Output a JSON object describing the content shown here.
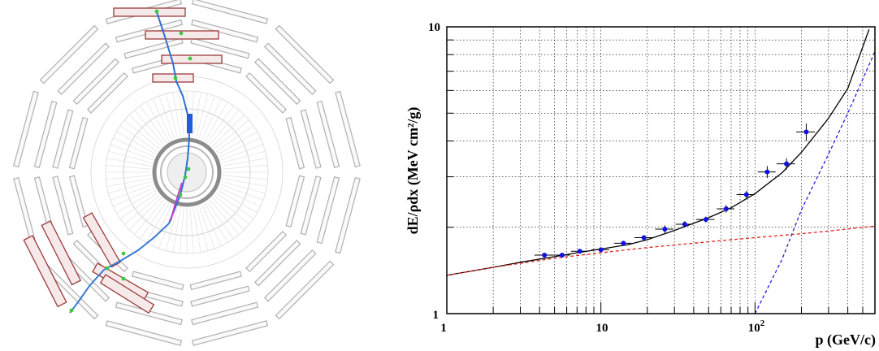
{
  "event_display": {
    "chamber_color": "#b0b0b0",
    "muon_station_fill": "#f6e9e9",
    "muon_station_stroke": "#9a3b3b",
    "track_colors": [
      "#3a7bd5",
      "#2e8b57",
      "#c23bd0",
      "#1f5fd6"
    ],
    "hit_color": "#3fc83f"
  },
  "chart_data": {
    "type": "scatter",
    "title": "",
    "xlabel": "p (GeV/c)",
    "ylabel": "dE/ρdx (MeV cm²/g)",
    "xscale": "log",
    "yscale": "log",
    "xlim": [
      1,
      600
    ],
    "ylim": [
      1,
      10
    ],
    "grid": true,
    "x_tick_labels": [
      "1",
      "10",
      "10²"
    ],
    "y_tick_labels": [
      "1",
      "10"
    ],
    "series": [
      {
        "kind": "points",
        "color": "#1010e0",
        "points": [
          {
            "x": 4.3,
            "y": 1.6,
            "xerr": 0.6,
            "yerr": 0.02
          },
          {
            "x": 5.6,
            "y": 1.6,
            "xerr": 0.7,
            "yerr": 0.02
          },
          {
            "x": 7.3,
            "y": 1.65,
            "xerr": 0.9,
            "yerr": 0.02
          },
          {
            "x": 10.0,
            "y": 1.67,
            "xerr": 1.3,
            "yerr": 0.03
          },
          {
            "x": 14.0,
            "y": 1.76,
            "xerr": 1.8,
            "yerr": 0.03
          },
          {
            "x": 19.0,
            "y": 1.84,
            "xerr": 2.5,
            "yerr": 0.03
          },
          {
            "x": 26.0,
            "y": 1.97,
            "xerr": 3.5,
            "yerr": 0.06
          },
          {
            "x": 35.0,
            "y": 2.05,
            "xerr": 4.5,
            "yerr": 0.05
          },
          {
            "x": 48.0,
            "y": 2.13,
            "xerr": 6.5,
            "yerr": 0.05
          },
          {
            "x": 65.0,
            "y": 2.32,
            "xerr": 8.5,
            "yerr": 0.07
          },
          {
            "x": 88.0,
            "y": 2.6,
            "xerr": 12,
            "yerr": 0.08
          },
          {
            "x": 120.0,
            "y": 3.12,
            "xerr": 16,
            "yerr": 0.15
          },
          {
            "x": 160.0,
            "y": 3.33,
            "xerr": 22,
            "yerr": 0.15
          },
          {
            "x": 215.0,
            "y": 4.3,
            "xerr": 30,
            "yerr": 0.3
          }
        ]
      },
      {
        "kind": "curve",
        "color": "#000000",
        "dash": "solid",
        "x": [
          1,
          2,
          3,
          5,
          7,
          10,
          15,
          20,
          30,
          50,
          70,
          100,
          150,
          200,
          300,
          400,
          550
        ],
        "y": [
          1.36,
          1.45,
          1.51,
          1.58,
          1.63,
          1.68,
          1.74,
          1.81,
          1.95,
          2.16,
          2.34,
          2.62,
          3.1,
          3.65,
          4.8,
          6.1,
          9.8
        ]
      },
      {
        "kind": "curve",
        "color": "#e02020",
        "dash": "dashed",
        "x": [
          1,
          2,
          5,
          10,
          20,
          50,
          100,
          200,
          300,
          600
        ],
        "y": [
          1.36,
          1.45,
          1.56,
          1.63,
          1.7,
          1.78,
          1.84,
          1.9,
          1.94,
          2.02
        ]
      },
      {
        "kind": "curve",
        "color": "#2020e0",
        "dash": "dashed",
        "x": [
          100,
          150,
          200,
          300,
          400,
          600
        ],
        "y": [
          1.0,
          1.55,
          2.3,
          3.6,
          5.0,
          8.2
        ]
      }
    ]
  }
}
